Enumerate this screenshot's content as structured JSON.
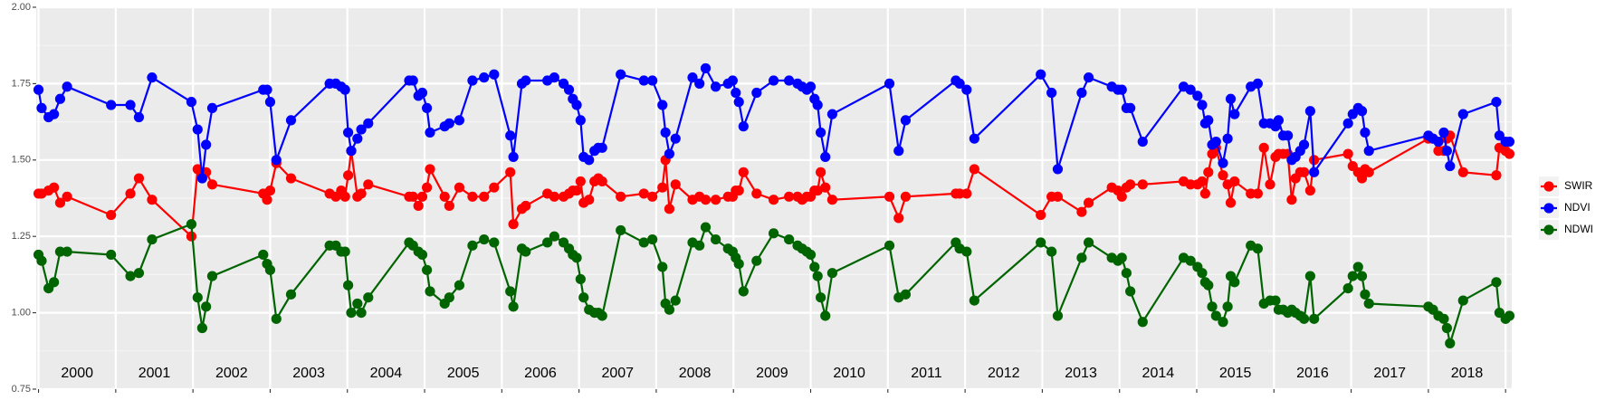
{
  "chart_data": {
    "type": "line",
    "x": [
      2000.0,
      2000.04,
      2000.13,
      2000.2,
      2000.28,
      2000.37,
      2000.94,
      2001.19,
      2001.3,
      2001.47,
      2001.98,
      2002.06,
      2002.12,
      2002.17,
      2002.25,
      2002.91,
      2002.96,
      2003.0,
      2003.08,
      2003.27,
      2003.77,
      2003.85,
      2003.92,
      2003.97,
      2004.01,
      2004.05,
      2004.13,
      2004.18,
      2004.27,
      2004.8,
      2004.85,
      2004.92,
      2004.97,
      2005.03,
      2005.07,
      2005.26,
      2005.32,
      2005.45,
      2005.62,
      2005.77,
      2005.9,
      2006.11,
      2006.15,
      2006.26,
      2006.31,
      2006.59,
      2006.68,
      2006.8,
      2006.87,
      2006.92,
      2006.97,
      2007.02,
      2007.06,
      2007.13,
      2007.2,
      2007.25,
      2007.3,
      2007.54,
      2007.84,
      2007.95,
      2008.08,
      2008.12,
      2008.17,
      2008.25,
      2008.47,
      2008.56,
      2008.64,
      2008.77,
      2008.93,
      2008.99,
      2009.03,
      2009.07,
      2009.13,
      2009.3,
      2009.52,
      2009.72,
      2009.83,
      2009.89,
      2009.95,
      2010.0,
      2010.05,
      2010.09,
      2010.13,
      2010.19,
      2010.28,
      2011.02,
      2011.14,
      2011.23,
      2011.88,
      2011.93,
      2012.02,
      2012.12,
      2012.98,
      2013.12,
      2013.2,
      2013.51,
      2013.6,
      2013.9,
      2013.98,
      2014.03,
      2014.09,
      2014.14,
      2014.3,
      2014.83,
      2014.92,
      2015.01,
      2015.07,
      2015.11,
      2015.15,
      2015.2,
      2015.25,
      2015.34,
      2015.4,
      2015.44,
      2015.49,
      2015.7,
      2015.79,
      2015.87,
      2015.95,
      2016.02,
      2016.06,
      2016.12,
      2016.18,
      2016.23,
      2016.28,
      2016.34,
      2016.39,
      2016.47,
      2016.52,
      2016.96,
      2017.02,
      2017.09,
      2017.14,
      2017.18,
      2017.23,
      2018.0,
      2018.06,
      2018.13,
      2018.2,
      2018.24,
      2018.28,
      2018.45,
      2018.88,
      2018.92,
      2019.0,
      2019.05
    ],
    "series": [
      {
        "name": "SWIR",
        "color": "#ff0000",
        "values": [
          1.39,
          1.39,
          1.4,
          1.41,
          1.36,
          1.38,
          1.32,
          1.39,
          1.44,
          1.37,
          1.25,
          1.47,
          1.45,
          1.46,
          1.42,
          1.39,
          1.37,
          1.4,
          1.49,
          1.44,
          1.39,
          1.38,
          1.4,
          1.38,
          1.45,
          1.53,
          1.38,
          1.39,
          1.42,
          1.38,
          1.38,
          1.35,
          1.38,
          1.41,
          1.47,
          1.38,
          1.35,
          1.41,
          1.38,
          1.38,
          1.41,
          1.46,
          1.29,
          1.34,
          1.35,
          1.39,
          1.38,
          1.38,
          1.39,
          1.4,
          1.4,
          1.43,
          1.36,
          1.37,
          1.43,
          1.44,
          1.43,
          1.38,
          1.39,
          1.38,
          1.41,
          1.5,
          1.34,
          1.42,
          1.37,
          1.38,
          1.37,
          1.37,
          1.38,
          1.38,
          1.4,
          1.4,
          1.46,
          1.39,
          1.37,
          1.38,
          1.38,
          1.37,
          1.38,
          1.38,
          1.4,
          1.4,
          1.46,
          1.41,
          1.37,
          1.38,
          1.31,
          1.38,
          1.39,
          1.39,
          1.39,
          1.47,
          1.32,
          1.38,
          1.38,
          1.33,
          1.36,
          1.41,
          1.4,
          1.38,
          1.41,
          1.42,
          1.42,
          1.43,
          1.42,
          1.42,
          1.43,
          1.39,
          1.46,
          1.52,
          1.54,
          1.45,
          1.42,
          1.36,
          1.43,
          1.39,
          1.39,
          1.54,
          1.42,
          1.51,
          1.52,
          1.52,
          1.52,
          1.37,
          1.44,
          1.46,
          1.46,
          1.4,
          1.5,
          1.52,
          1.48,
          1.46,
          1.44,
          1.47,
          1.46,
          1.57,
          1.57,
          1.53,
          1.53,
          1.57,
          1.58,
          1.46,
          1.45,
          1.54,
          1.53,
          1.52
        ]
      },
      {
        "name": "NDVI",
        "color": "#0000ff",
        "values": [
          1.73,
          1.67,
          1.64,
          1.65,
          1.7,
          1.74,
          1.68,
          1.68,
          1.64,
          1.77,
          1.69,
          1.6,
          1.44,
          1.55,
          1.67,
          1.73,
          1.73,
          1.69,
          1.5,
          1.63,
          1.75,
          1.75,
          1.74,
          1.73,
          1.59,
          1.53,
          1.57,
          1.6,
          1.62,
          1.76,
          1.76,
          1.71,
          1.72,
          1.67,
          1.59,
          1.61,
          1.62,
          1.63,
          1.76,
          1.77,
          1.78,
          1.58,
          1.51,
          1.75,
          1.76,
          1.76,
          1.77,
          1.75,
          1.73,
          1.7,
          1.68,
          1.63,
          1.51,
          1.5,
          1.53,
          1.54,
          1.54,
          1.78,
          1.76,
          1.76,
          1.68,
          1.59,
          1.52,
          1.57,
          1.77,
          1.75,
          1.8,
          1.74,
          1.75,
          1.76,
          1.72,
          1.69,
          1.61,
          1.72,
          1.76,
          1.76,
          1.75,
          1.74,
          1.73,
          1.74,
          1.7,
          1.68,
          1.59,
          1.51,
          1.65,
          1.75,
          1.53,
          1.63,
          1.76,
          1.75,
          1.73,
          1.57,
          1.78,
          1.72,
          1.47,
          1.72,
          1.77,
          1.74,
          1.73,
          1.73,
          1.67,
          1.67,
          1.56,
          1.74,
          1.73,
          1.71,
          1.68,
          1.62,
          1.63,
          1.55,
          1.56,
          1.49,
          1.57,
          1.7,
          1.65,
          1.74,
          1.75,
          1.62,
          1.62,
          1.61,
          1.63,
          1.58,
          1.58,
          1.5,
          1.51,
          1.53,
          1.55,
          1.66,
          1.46,
          1.62,
          1.65,
          1.67,
          1.66,
          1.59,
          1.53,
          1.58,
          1.57,
          1.56,
          1.59,
          1.53,
          1.48,
          1.65,
          1.69,
          1.58,
          1.56,
          1.56
        ]
      },
      {
        "name": "NDWI",
        "color": "#006400",
        "values": [
          1.19,
          1.17,
          1.08,
          1.1,
          1.2,
          1.2,
          1.19,
          1.12,
          1.13,
          1.24,
          1.29,
          1.05,
          0.95,
          1.02,
          1.12,
          1.19,
          1.16,
          1.14,
          0.98,
          1.06,
          1.22,
          1.22,
          1.2,
          1.2,
          1.09,
          1.0,
          1.03,
          1.0,
          1.05,
          1.23,
          1.22,
          1.2,
          1.19,
          1.14,
          1.07,
          1.03,
          1.05,
          1.09,
          1.22,
          1.24,
          1.23,
          1.07,
          1.02,
          1.21,
          1.2,
          1.23,
          1.25,
          1.23,
          1.21,
          1.19,
          1.18,
          1.11,
          1.05,
          1.01,
          1.0,
          1.0,
          0.99,
          1.27,
          1.23,
          1.24,
          1.15,
          1.03,
          1.01,
          1.04,
          1.23,
          1.22,
          1.28,
          1.24,
          1.21,
          1.2,
          1.18,
          1.16,
          1.07,
          1.17,
          1.26,
          1.24,
          1.22,
          1.21,
          1.2,
          1.19,
          1.15,
          1.12,
          1.05,
          0.99,
          1.13,
          1.22,
          1.05,
          1.06,
          1.23,
          1.21,
          1.2,
          1.04,
          1.23,
          1.2,
          0.99,
          1.18,
          1.23,
          1.18,
          1.17,
          1.18,
          1.13,
          1.07,
          0.97,
          1.18,
          1.17,
          1.15,
          1.13,
          1.1,
          1.09,
          1.02,
          0.99,
          0.97,
          1.02,
          1.12,
          1.1,
          1.22,
          1.21,
          1.03,
          1.04,
          1.04,
          1.01,
          1.01,
          1.0,
          1.01,
          1.0,
          0.99,
          0.98,
          1.12,
          0.98,
          1.08,
          1.12,
          1.15,
          1.12,
          1.06,
          1.03,
          1.02,
          1.01,
          0.99,
          0.98,
          0.95,
          0.9,
          1.04,
          1.1,
          1.0,
          0.98,
          0.99
        ]
      }
    ],
    "xlim": [
      1999.97,
      2019.08
    ],
    "xticks": [
      2000,
      2001,
      2002,
      2003,
      2004,
      2005,
      2006,
      2007,
      2008,
      2009,
      2010,
      2011,
      2012,
      2013,
      2014,
      2015,
      2016,
      2017,
      2018,
      2019
    ],
    "year_labels": [
      2000,
      2001,
      2002,
      2003,
      2004,
      2005,
      2006,
      2007,
      2008,
      2009,
      2010,
      2011,
      2012,
      2013,
      2014,
      2015,
      2016,
      2017,
      2018
    ],
    "ylim": [
      0.75,
      2.0
    ],
    "yticks": [
      {
        "value": 0.75,
        "label": "0.75"
      },
      {
        "value": 1.0,
        "label": "1.00"
      },
      {
        "value": 1.25,
        "label": "1.25"
      },
      {
        "value": 1.5,
        "label": "1.50"
      },
      {
        "value": 1.75,
        "label": "1.75"
      },
      {
        "value": 2.0,
        "label": "2.00"
      }
    ],
    "grid": true,
    "legend": "right"
  }
}
